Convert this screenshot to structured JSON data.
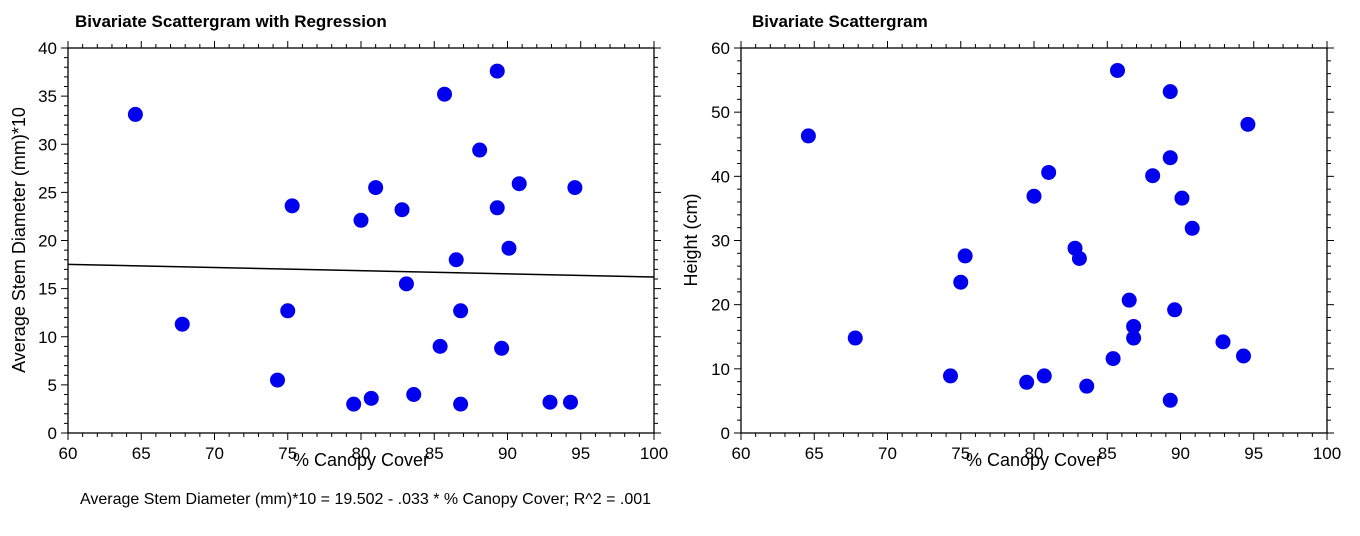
{
  "equation": "Average Stem Diameter (mm)*10 = 19.502 - .033 * % Canopy Cover; R^2 = .001",
  "colors": {
    "point": "#0000ee",
    "line": "#000000",
    "axis": "#000000"
  },
  "chart_data": [
    {
      "type": "scatter",
      "title": "Bivariate Scattergram with Regression",
      "xlabel": "% Canopy Cover",
      "ylabel": "Average Stem Diameter (mm)*10",
      "xlim": [
        60,
        100
      ],
      "ylim": [
        0,
        40
      ],
      "xticks": [
        60,
        65,
        70,
        75,
        80,
        85,
        90,
        95,
        100
      ],
      "yticks": [
        0,
        5,
        10,
        15,
        20,
        25,
        30,
        35,
        40
      ],
      "grid": false,
      "regression": {
        "intercept": 19.502,
        "slope": -0.033,
        "r2": 0.001
      },
      "points": [
        {
          "x": 64.6,
          "y": 33.1
        },
        {
          "x": 67.8,
          "y": 11.3
        },
        {
          "x": 74.3,
          "y": 5.5
        },
        {
          "x": 75.0,
          "y": 12.7
        },
        {
          "x": 75.3,
          "y": 23.6
        },
        {
          "x": 79.5,
          "y": 3.0
        },
        {
          "x": 80.0,
          "y": 22.1
        },
        {
          "x": 80.7,
          "y": 3.6
        },
        {
          "x": 81.0,
          "y": 25.5
        },
        {
          "x": 82.8,
          "y": 23.2
        },
        {
          "x": 83.1,
          "y": 15.5
        },
        {
          "x": 83.6,
          "y": 4.0
        },
        {
          "x": 85.4,
          "y": 9.0
        },
        {
          "x": 85.7,
          "y": 35.2
        },
        {
          "x": 86.5,
          "y": 18.0
        },
        {
          "x": 86.8,
          "y": 12.7
        },
        {
          "x": 86.8,
          "y": 3.0
        },
        {
          "x": 88.1,
          "y": 29.4
        },
        {
          "x": 89.3,
          "y": 37.6
        },
        {
          "x": 89.3,
          "y": 23.4
        },
        {
          "x": 89.6,
          "y": 8.8
        },
        {
          "x": 90.1,
          "y": 19.2
        },
        {
          "x": 90.8,
          "y": 25.9
        },
        {
          "x": 92.9,
          "y": 3.2
        },
        {
          "x": 94.3,
          "y": 3.2
        },
        {
          "x": 94.6,
          "y": 25.5
        }
      ]
    },
    {
      "type": "scatter",
      "title": "Bivariate Scattergram",
      "xlabel": "% Canopy Cover",
      "ylabel": "Height (cm)",
      "xlim": [
        60,
        100
      ],
      "ylim": [
        0,
        60
      ],
      "xticks": [
        60,
        65,
        70,
        75,
        80,
        85,
        90,
        95,
        100
      ],
      "yticks": [
        0,
        10,
        20,
        30,
        40,
        50,
        60
      ],
      "grid": false,
      "points": [
        {
          "x": 64.6,
          "y": 46.3
        },
        {
          "x": 67.8,
          "y": 14.8
        },
        {
          "x": 74.3,
          "y": 8.9
        },
        {
          "x": 75.0,
          "y": 23.5
        },
        {
          "x": 75.3,
          "y": 27.6
        },
        {
          "x": 79.5,
          "y": 7.9
        },
        {
          "x": 80.0,
          "y": 36.9
        },
        {
          "x": 80.7,
          "y": 8.9
        },
        {
          "x": 81.0,
          "y": 40.6
        },
        {
          "x": 82.8,
          "y": 28.8
        },
        {
          "x": 83.1,
          "y": 27.2
        },
        {
          "x": 83.6,
          "y": 7.3
        },
        {
          "x": 85.4,
          "y": 11.6
        },
        {
          "x": 85.7,
          "y": 56.5
        },
        {
          "x": 86.5,
          "y": 20.7
        },
        {
          "x": 86.8,
          "y": 16.6
        },
        {
          "x": 86.8,
          "y": 14.8
        },
        {
          "x": 88.1,
          "y": 40.1
        },
        {
          "x": 89.3,
          "y": 53.2
        },
        {
          "x": 89.3,
          "y": 42.9
        },
        {
          "x": 89.3,
          "y": 5.1
        },
        {
          "x": 89.6,
          "y": 19.2
        },
        {
          "x": 90.1,
          "y": 36.6
        },
        {
          "x": 90.8,
          "y": 31.9
        },
        {
          "x": 92.9,
          "y": 14.2
        },
        {
          "x": 94.3,
          "y": 12.0
        },
        {
          "x": 94.6,
          "y": 48.1
        }
      ]
    }
  ]
}
